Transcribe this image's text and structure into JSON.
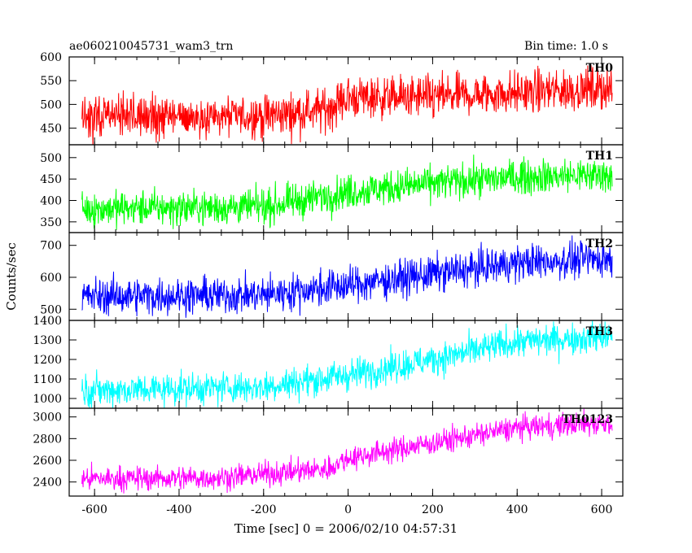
{
  "header": {
    "title": "ae060210045731_wam3_trn",
    "bin_time": "Bin time: 1.0 s"
  },
  "chart_data": {
    "type": "line",
    "xlabel": "Time [sec] 0 = 2006/02/10 04:57:31",
    "ylabel": "Counts/sec",
    "xlim": [
      -660,
      650
    ],
    "xticks": [
      -600,
      -400,
      -200,
      0,
      200,
      400,
      600
    ],
    "x_range_data": [
      -630,
      625
    ],
    "bin_time_s": 1.0,
    "panels": [
      {
        "name": "TH0",
        "color": "#ff0000",
        "ylim": [
          415,
          600
        ],
        "yticks": [
          450,
          500,
          550,
          600
        ],
        "level_points": [
          [
            -630,
            472
          ],
          [
            -200,
            475
          ],
          [
            -50,
            490
          ],
          [
            0,
            515
          ],
          [
            200,
            515
          ],
          [
            400,
            525
          ],
          [
            625,
            535
          ]
        ],
        "noise": 22
      },
      {
        "name": "TH1",
        "color": "#00ff00",
        "ylim": [
          325,
          530
        ],
        "yticks": [
          350,
          400,
          450,
          500
        ],
        "level_points": [
          [
            -630,
            380
          ],
          [
            -200,
            385
          ],
          [
            0,
            420
          ],
          [
            200,
            440
          ],
          [
            400,
            455
          ],
          [
            625,
            460
          ]
        ],
        "noise": 20
      },
      {
        "name": "TH2",
        "color": "#0000ff",
        "ylim": [
          465,
          740
        ],
        "yticks": [
          500,
          600,
          700
        ],
        "level_points": [
          [
            -630,
            540
          ],
          [
            -200,
            545
          ],
          [
            0,
            575
          ],
          [
            200,
            610
          ],
          [
            400,
            645
          ],
          [
            625,
            660
          ]
        ],
        "noise": 28
      },
      {
        "name": "TH3",
        "color": "#00ffff",
        "ylim": [
          950,
          1400
        ],
        "yticks": [
          1000,
          1100,
          1200,
          1300,
          1400
        ],
        "level_points": [
          [
            -630,
            1040
          ],
          [
            -200,
            1060
          ],
          [
            0,
            1120
          ],
          [
            200,
            1200
          ],
          [
            400,
            1290
          ],
          [
            625,
            1320
          ]
        ],
        "noise": 40
      },
      {
        "name": "TH0123",
        "color": "#ff00ff",
        "ylim": [
          2270,
          3080
        ],
        "yticks": [
          2400,
          2600,
          2800,
          3000
        ],
        "level_points": [
          [
            -630,
            2430
          ],
          [
            -300,
            2440
          ],
          [
            -50,
            2520
          ],
          [
            0,
            2620
          ],
          [
            200,
            2760
          ],
          [
            400,
            2900
          ],
          [
            625,
            2950
          ]
        ],
        "noise": 55
      }
    ]
  }
}
